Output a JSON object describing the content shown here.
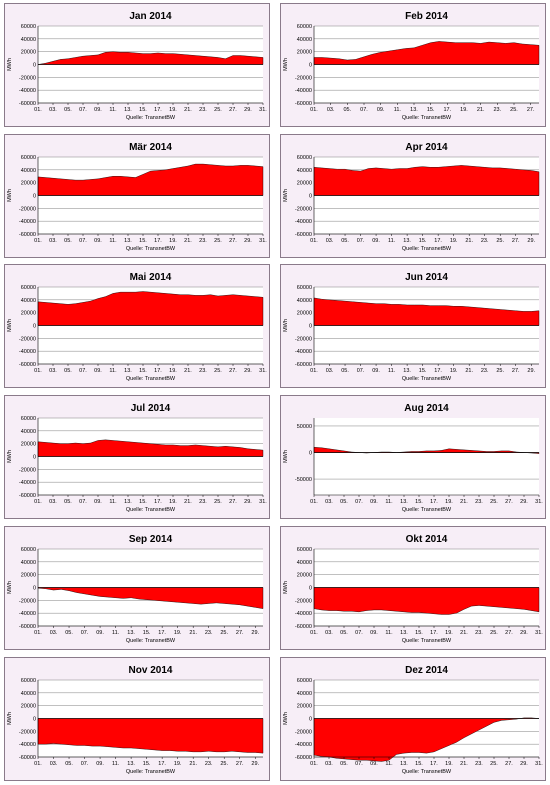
{
  "chart_data": [
    {
      "type": "area",
      "title": "Jan 2014",
      "ylabel": "MWh",
      "source": "Quelle: TransnetBW",
      "yticks": [
        60000,
        40000,
        20000,
        0,
        -20000,
        -40000,
        -60000
      ],
      "ylim": [
        -60000,
        60000
      ],
      "days": 31,
      "xticks": [
        "01.",
        "03.",
        "05.",
        "07.",
        "09.",
        "11.",
        "13.",
        "15.",
        "17.",
        "19.",
        "21.",
        "23.",
        "25.",
        "27.",
        "29.",
        "31."
      ],
      "values": [
        0,
        2000,
        5000,
        8000,
        9000,
        11000,
        13000,
        14000,
        15000,
        19000,
        20000,
        19000,
        19000,
        18000,
        17000,
        17000,
        18000,
        17000,
        17000,
        16000,
        15000,
        14000,
        13000,
        12000,
        11000,
        9000,
        14000,
        14000,
        13000,
        12000,
        11000
      ]
    },
    {
      "type": "area",
      "title": "Feb 2014",
      "ylabel": "MWh",
      "source": "Quelle: TransnetBW",
      "yticks": [
        60000,
        40000,
        20000,
        0,
        -20000,
        -40000,
        -60000
      ],
      "ylim": [
        -60000,
        60000
      ],
      "days": 28,
      "xticks": [
        "01.",
        "03.",
        "05.",
        "07.",
        "09.",
        "11.",
        "13.",
        "15.",
        "17.",
        "19.",
        "21.",
        "23.",
        "25.",
        "27."
      ],
      "values": [
        11000,
        11000,
        10000,
        9000,
        7000,
        8000,
        12000,
        16000,
        19000,
        21000,
        23000,
        25000,
        26000,
        30000,
        34000,
        36000,
        35000,
        34000,
        34000,
        34000,
        33000,
        35000,
        34000,
        33000,
        34000,
        32000,
        31000,
        30000
      ]
    },
    {
      "type": "area",
      "title": "Mär 2014",
      "ylabel": "MWh",
      "source": "Quelle: TransnetBW",
      "yticks": [
        60000,
        40000,
        20000,
        0,
        -20000,
        -40000,
        -60000
      ],
      "ylim": [
        -60000,
        60000
      ],
      "days": 31,
      "xticks": [
        "01.",
        "03.",
        "05.",
        "07.",
        "09.",
        "11.",
        "13.",
        "15.",
        "17.",
        "19.",
        "21.",
        "23.",
        "25.",
        "27.",
        "29.",
        "31."
      ],
      "values": [
        29000,
        28000,
        27000,
        26000,
        25000,
        24000,
        24000,
        25000,
        26000,
        28000,
        30000,
        30000,
        29000,
        28000,
        33000,
        38000,
        39000,
        40000,
        42000,
        44000,
        46000,
        49000,
        49000,
        48000,
        47000,
        46000,
        46000,
        47000,
        47000,
        46000,
        45000
      ]
    },
    {
      "type": "area",
      "title": "Apr 2014",
      "ylabel": "MWh",
      "source": "Quelle: TransnetBW",
      "yticks": [
        60000,
        40000,
        20000,
        0,
        -20000,
        -40000,
        -60000
      ],
      "ylim": [
        -60000,
        60000
      ],
      "days": 30,
      "xticks": [
        "01.",
        "03.",
        "05.",
        "07.",
        "09.",
        "11.",
        "13.",
        "15.",
        "17.",
        "19.",
        "21.",
        "23.",
        "25.",
        "27.",
        "29."
      ],
      "values": [
        44000,
        43000,
        42000,
        41000,
        41000,
        39000,
        38000,
        42000,
        43000,
        42000,
        41000,
        42000,
        42000,
        44000,
        45000,
        44000,
        44000,
        45000,
        46000,
        47000,
        46000,
        45000,
        44000,
        43000,
        43000,
        42000,
        41000,
        40000,
        39000,
        37000
      ]
    },
    {
      "type": "area",
      "title": "Mai 2014",
      "ylabel": "MWh",
      "source": "Quelle: TransnetBW",
      "yticks": [
        60000,
        40000,
        20000,
        0,
        -20000,
        -40000,
        -60000
      ],
      "ylim": [
        -60000,
        60000
      ],
      "days": 31,
      "xticks": [
        "01.",
        "03.",
        "05.",
        "07.",
        "09.",
        "11.",
        "13.",
        "15.",
        "17.",
        "19.",
        "21.",
        "23.",
        "25.",
        "27.",
        "29.",
        "31."
      ],
      "values": [
        37000,
        36000,
        35000,
        34000,
        33000,
        34000,
        36000,
        38000,
        42000,
        45000,
        50000,
        52000,
        52000,
        52000,
        53000,
        52000,
        51000,
        50000,
        49000,
        48000,
        48000,
        47000,
        47000,
        48000,
        46000,
        47000,
        48000,
        47000,
        46000,
        45000,
        44000
      ]
    },
    {
      "type": "area",
      "title": "Jun 2014",
      "ylabel": "MWh",
      "source": "Quelle: TransnetBW",
      "yticks": [
        60000,
        40000,
        20000,
        0,
        -20000,
        -40000,
        -60000
      ],
      "ylim": [
        -60000,
        60000
      ],
      "days": 30,
      "xticks": [
        "01.",
        "03.",
        "05.",
        "07.",
        "09.",
        "11.",
        "13.",
        "15.",
        "17.",
        "19.",
        "21.",
        "23.",
        "25.",
        "27.",
        "29."
      ],
      "values": [
        43000,
        41000,
        40000,
        39000,
        38000,
        37000,
        36000,
        35000,
        34000,
        34000,
        33000,
        33000,
        32000,
        32000,
        32000,
        31000,
        31000,
        31000,
        30000,
        30000,
        29000,
        28000,
        27000,
        26000,
        25000,
        24000,
        23000,
        22000,
        22000,
        23000
      ]
    },
    {
      "type": "area",
      "title": "Jul 2014",
      "ylabel": "MWh",
      "source": "Quelle: TransnetBW",
      "yticks": [
        60000,
        40000,
        20000,
        0,
        -20000,
        -40000,
        -60000
      ],
      "ylim": [
        -60000,
        60000
      ],
      "days": 31,
      "xticks": [
        "01.",
        "03.",
        "05.",
        "07.",
        "09.",
        "11.",
        "13.",
        "15.",
        "17.",
        "19.",
        "21.",
        "23.",
        "25.",
        "27.",
        "29.",
        "31."
      ],
      "values": [
        23000,
        22000,
        21000,
        20000,
        20000,
        21000,
        20000,
        21000,
        25000,
        26000,
        25000,
        24000,
        23000,
        22000,
        21000,
        20000,
        19000,
        18000,
        18000,
        17000,
        17000,
        18000,
        17000,
        16000,
        15000,
        16000,
        15000,
        14000,
        12000,
        11000,
        10000
      ]
    },
    {
      "type": "area",
      "title": "Aug 2014",
      "ylabel": "MWh",
      "source": "Quelle: TransnetBW",
      "yticks": [
        50000,
        0,
        -50000
      ],
      "ylim": [
        -80000,
        65000
      ],
      "days": 31,
      "xticks": [
        "01.",
        "03.",
        "05.",
        "07.",
        "09.",
        "11.",
        "13.",
        "15.",
        "17.",
        "19.",
        "21.",
        "23.",
        "25.",
        "27.",
        "29.",
        "31."
      ],
      "values": [
        10000,
        9000,
        7000,
        5000,
        3000,
        1000,
        0,
        -1000,
        0,
        1000,
        1000,
        0,
        1000,
        2000,
        2000,
        3000,
        3000,
        4000,
        7000,
        6000,
        5000,
        4000,
        3000,
        2000,
        2000,
        3000,
        3000,
        1000,
        0,
        -1000,
        -2000
      ]
    },
    {
      "type": "area",
      "title": "Sep 2014",
      "ylabel": "MWh",
      "source": "Quelle: TransnetBW",
      "yticks": [
        60000,
        40000,
        20000,
        0,
        -20000,
        -40000,
        -60000
      ],
      "ylim": [
        -60000,
        60000
      ],
      "days": 30,
      "xticks": [
        "01.",
        "03.",
        "05.",
        "07.",
        "09.",
        "11.",
        "13.",
        "15.",
        "17.",
        "19.",
        "21.",
        "23.",
        "25.",
        "27.",
        "29."
      ],
      "values": [
        -1000,
        -2000,
        -4000,
        -3000,
        -5000,
        -8000,
        -10000,
        -12000,
        -14000,
        -15000,
        -16000,
        -17000,
        -16000,
        -18000,
        -19000,
        -20000,
        -21000,
        -22000,
        -23000,
        -24000,
        -25000,
        -26000,
        -25000,
        -24000,
        -25000,
        -26000,
        -27000,
        -29000,
        -31000,
        -33000
      ]
    },
    {
      "type": "area",
      "title": "Okt 2014",
      "ylabel": "MWh",
      "source": "Quelle: TransnetBW",
      "yticks": [
        60000,
        40000,
        20000,
        0,
        -20000,
        -40000,
        -60000
      ],
      "ylim": [
        -60000,
        60000
      ],
      "days": 31,
      "xticks": [
        "01.",
        "03.",
        "05.",
        "07.",
        "09.",
        "11.",
        "13.",
        "15.",
        "17.",
        "19.",
        "21.",
        "23.",
        "25.",
        "27.",
        "29.",
        "31."
      ],
      "values": [
        -33000,
        -35000,
        -36000,
        -36000,
        -37000,
        -37000,
        -38000,
        -36000,
        -35000,
        -35000,
        -36000,
        -37000,
        -38000,
        -39000,
        -39000,
        -40000,
        -41000,
        -42000,
        -42000,
        -40000,
        -34000,
        -29000,
        -28000,
        -29000,
        -30000,
        -31000,
        -32000,
        -33000,
        -34000,
        -36000,
        -38000
      ]
    },
    {
      "type": "area",
      "title": "Nov 2014",
      "ylabel": "MWh",
      "source": "Quelle: TransnetBW",
      "yticks": [
        60000,
        40000,
        20000,
        0,
        -20000,
        -40000,
        -60000
      ],
      "ylim": [
        -60000,
        60000
      ],
      "days": 30,
      "xticks": [
        "01.",
        "03.",
        "05.",
        "07.",
        "09.",
        "11.",
        "13.",
        "15.",
        "17.",
        "19.",
        "21.",
        "23.",
        "25.",
        "27.",
        "29."
      ],
      "values": [
        -40000,
        -40000,
        -39000,
        -40000,
        -41000,
        -42000,
        -42000,
        -43000,
        -43000,
        -44000,
        -45000,
        -46000,
        -46000,
        -47000,
        -48000,
        -49000,
        -50000,
        -50000,
        -51000,
        -51000,
        -52000,
        -52000,
        -51000,
        -52000,
        -52000,
        -51000,
        -52000,
        -53000,
        -53000,
        -54000
      ]
    },
    {
      "type": "area",
      "title": "Dez 2014",
      "ylabel": "MWh",
      "source": "Quelle: TransnetBW",
      "yticks": [
        60000,
        40000,
        20000,
        0,
        -20000,
        -40000,
        -60000
      ],
      "ylim": [
        -60000,
        60000
      ],
      "days": 31,
      "xticks": [
        "01.",
        "03.",
        "05.",
        "07.",
        "09.",
        "11.",
        "13.",
        "15.",
        "17.",
        "19.",
        "21.",
        "23.",
        "25.",
        "27.",
        "29.",
        "31."
      ],
      "values": [
        -57000,
        -59000,
        -60000,
        -62000,
        -63000,
        -64000,
        -65000,
        -65000,
        -66000,
        -67000,
        -65000,
        -56000,
        -54000,
        -53000,
        -53000,
        -54000,
        -52000,
        -47000,
        -42000,
        -37000,
        -30000,
        -24000,
        -18000,
        -12000,
        -6000,
        -3000,
        -2000,
        -1000,
        1000,
        1000,
        0
      ]
    }
  ]
}
